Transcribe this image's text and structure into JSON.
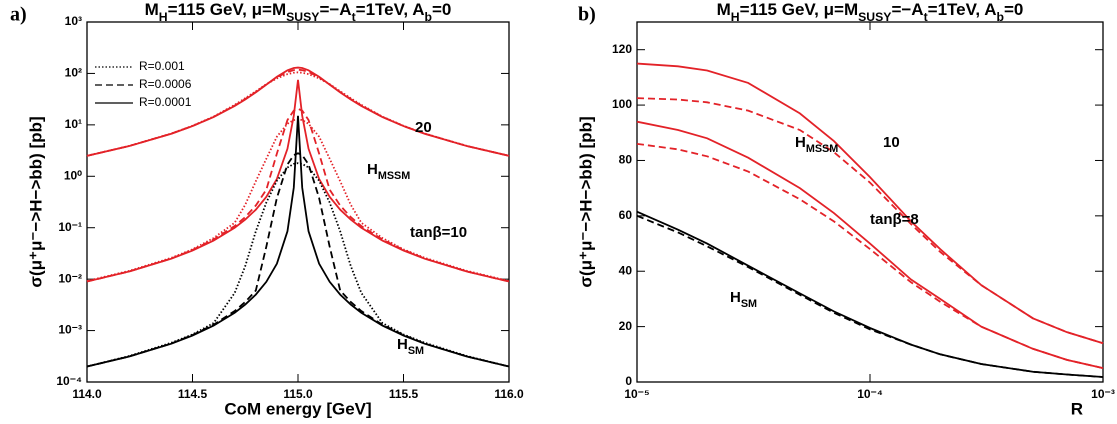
{
  "chart_data": [
    {
      "type": "line",
      "panel": "a)",
      "title": [
        "M",
        "H",
        "=115 GeV,  μ=M",
        "SUSY",
        "=−A",
        "t",
        "=1TeV,  A",
        "b",
        "=0"
      ],
      "x_label": "CoM energy [GeV]",
      "y_label": "σ(μ⁺μ⁻−>H−>bb) [pb]",
      "ylog": true,
      "xlim": [
        114,
        116
      ],
      "xticks": [
        {
          "value": 114,
          "label": "114.0"
        },
        114.5,
        {
          "value": 115,
          "label": "115.0"
        },
        115.5,
        {
          "value": 116,
          "label": "116.0"
        }
      ],
      "ylim": [
        0.0001,
        1000
      ],
      "yticks": [
        {
          "value": 0.0001,
          "label": "10⁻⁴"
        },
        {
          "value": 0.001,
          "label": "10⁻³"
        },
        {
          "value": 0.01,
          "label": "10⁻²"
        },
        {
          "value": 0.1,
          "label": "10⁻¹"
        },
        {
          "value": 1,
          "label": "10⁰"
        },
        {
          "value": 10,
          "label": "10¹"
        },
        {
          "value": 100,
          "label": "10²"
        },
        {
          "value": 1000,
          "label": "10³"
        }
      ],
      "legend": [
        {
          "name": "R=0.001",
          "dash": "dotted"
        },
        {
          "name": "R=0.0006",
          "dash": "dashed"
        },
        {
          "name": "R=0.0001",
          "dash": "solid"
        }
      ],
      "annotations": [
        "20",
        [
          "H",
          "MSSM"
        ],
        "tanβ=10",
        [
          "H",
          "SM"
        ]
      ],
      "x": [
        114,
        114.2,
        114.4,
        114.5,
        114.6,
        114.7,
        114.75,
        114.8,
        114.85,
        114.9,
        114.95,
        114.98,
        115,
        115.02,
        115.05,
        115.1,
        115.15,
        115.2,
        115.25,
        115.3,
        115.4,
        115.5,
        115.6,
        115.8,
        116
      ],
      "series": [
        {
          "color": "#e32228",
          "dash": "solid",
          "values": [
            2.5,
            3.87,
            6.72,
            9.46,
            14.2,
            23.3,
            31.1,
            42.8,
            60.6,
            86.1,
            115,
            127.5,
            130,
            127.5,
            115,
            86.1,
            60.6,
            42.8,
            31.1,
            23.3,
            14.2,
            9.46,
            6.72,
            3.87,
            2.5
          ]
        },
        {
          "color": "#e32228",
          "dash": "dashed",
          "values": [
            2.5,
            3.88,
            6.75,
            9.5,
            14.3,
            23.8,
            31.8,
            43.5,
            61,
            84,
            107,
            116,
            118,
            116,
            107,
            84,
            61,
            43.5,
            31.8,
            23.8,
            14.3,
            9.5,
            6.75,
            3.88,
            2.5
          ]
        },
        {
          "color": "#e32228",
          "dash": "dotted",
          "values": [
            2.51,
            3.9,
            6.8,
            9.6,
            14.5,
            24.5,
            33,
            45,
            62,
            80,
            97,
            103,
            105,
            103,
            97,
            80,
            62,
            45,
            33,
            24.5,
            14.5,
            9.6,
            6.8,
            3.9,
            2.51
          ]
        },
        {
          "color": "#e32228",
          "dash": "solid",
          "values": [
            0.009,
            0.0141,
            0.025,
            0.036,
            0.0562,
            0.0999,
            0.144,
            0.224,
            0.398,
            0.889,
            3.43,
            15,
            75,
            15,
            3.43,
            0.889,
            0.398,
            0.224,
            0.144,
            0.0999,
            0.0562,
            0.036,
            0.025,
            0.0141,
            0.009
          ]
        },
        {
          "color": "#e32228",
          "dash": "dashed",
          "values": [
            0.009,
            0.0141,
            0.0252,
            0.037,
            0.059,
            0.108,
            0.161,
            0.27,
            0.55,
            2.78,
            12.4,
            18.9,
            20.5,
            18.9,
            12.4,
            2.78,
            0.55,
            0.27,
            0.161,
            0.108,
            0.059,
            0.037,
            0.0252,
            0.0141,
            0.009
          ]
        },
        {
          "color": "#e32228",
          "dash": "dotted",
          "values": [
            0.0092,
            0.0145,
            0.026,
            0.038,
            0.063,
            0.125,
            0.28,
            0.8,
            2.2,
            5.9,
            10.5,
            12.4,
            12.8,
            12.4,
            10.5,
            5.9,
            2.2,
            0.8,
            0.28,
            0.125,
            0.063,
            0.038,
            0.026,
            0.0145,
            0.0092
          ]
        },
        {
          "color": "#000000",
          "dash": "solid",
          "values": [
            0.0002,
            0.000313,
            0.000556,
            0.0008,
            0.00125,
            0.00222,
            0.0032,
            0.005,
            0.00889,
            0.02,
            0.085,
            0.6,
            15,
            0.6,
            0.085,
            0.02,
            0.00889,
            0.005,
            0.0032,
            0.00222,
            0.00125,
            0.0008,
            0.000556,
            0.000313,
            0.0002
          ]
        },
        {
          "color": "#000000",
          "dash": "dashed",
          "values": [
            0.0002,
            0.000314,
            0.00056,
            0.00082,
            0.0013,
            0.0024,
            0.0036,
            0.006,
            0.043,
            0.38,
            1.7,
            2.58,
            2.8,
            2.58,
            1.7,
            0.38,
            0.043,
            0.006,
            0.0036,
            0.0024,
            0.0013,
            0.00082,
            0.00056,
            0.000314,
            0.0002
          ]
        },
        {
          "color": "#000000",
          "dash": "dotted",
          "values": [
            0.0002,
            0.00032,
            0.00058,
            0.00084,
            0.0014,
            0.0054,
            0.018,
            0.085,
            0.31,
            0.82,
            1.48,
            1.74,
            1.8,
            1.74,
            1.48,
            0.82,
            0.31,
            0.085,
            0.018,
            0.0054,
            0.0014,
            0.00084,
            0.00058,
            0.00032,
            0.0002
          ]
        }
      ]
    },
    {
      "type": "line",
      "panel": "b)",
      "title": [
        "M",
        "H",
        "=115 GeV,  μ=M",
        "SUSY",
        "=−A",
        "t",
        "=1TeV,  A",
        "b",
        "=0"
      ],
      "x_label": "R",
      "y_label": "σ(μ⁺μ⁻−>H−>bb) [pb]",
      "xlog": true,
      "xlim": [
        1e-05,
        0.001
      ],
      "xticks": [
        {
          "value": 1e-05,
          "label": "10⁻⁵"
        },
        {
          "value": 0.0001,
          "label": "10⁻⁴"
        },
        {
          "value": 0.001,
          "label": "10⁻³"
        }
      ],
      "ylim": [
        0,
        130
      ],
      "yticks": [
        0,
        20,
        40,
        60,
        80,
        100,
        120
      ],
      "annotations": [
        [
          "H",
          "MSSM"
        ],
        "10",
        "tanβ=8",
        [
          "H",
          "SM"
        ]
      ],
      "x": [
        1e-05,
        1.5e-05,
        2e-05,
        3e-05,
        5e-05,
        7e-05,
        0.0001,
        0.00015,
        0.0002,
        0.0003,
        0.0005,
        0.0007,
        0.001
      ],
      "series": [
        {
          "color": "#e32228",
          "dash": "solid",
          "values": [
            115,
            114,
            112.5,
            108,
            97,
            87,
            74,
            58,
            48,
            35,
            23,
            18,
            14
          ]
        },
        {
          "color": "#e32228",
          "dash": "dashed",
          "values": [
            102.5,
            102,
            101,
            98,
            91,
            83,
            72,
            57,
            47,
            35,
            23,
            18,
            14
          ]
        },
        {
          "color": "#e32228",
          "dash": "solid",
          "values": [
            94,
            91,
            88,
            81,
            70,
            61,
            50,
            37,
            30,
            20,
            12,
            8,
            5
          ]
        },
        {
          "color": "#e32228",
          "dash": "dashed",
          "values": [
            86,
            84,
            81.5,
            76,
            66,
            58,
            48,
            36,
            29,
            20,
            12,
            8,
            5
          ]
        },
        {
          "color": "#000000",
          "dash": "solid",
          "values": [
            61.5,
            55,
            50,
            42,
            32,
            25.5,
            19.5,
            13.5,
            10,
            6.5,
            3.7,
            2.7,
            1.8
          ]
        },
        {
          "color": "#000000",
          "dash": "dashed",
          "values": [
            60,
            54,
            49,
            41.5,
            31.5,
            25,
            19,
            13.5,
            10,
            6.5,
            3.7,
            2.7,
            1.8
          ]
        }
      ]
    }
  ]
}
